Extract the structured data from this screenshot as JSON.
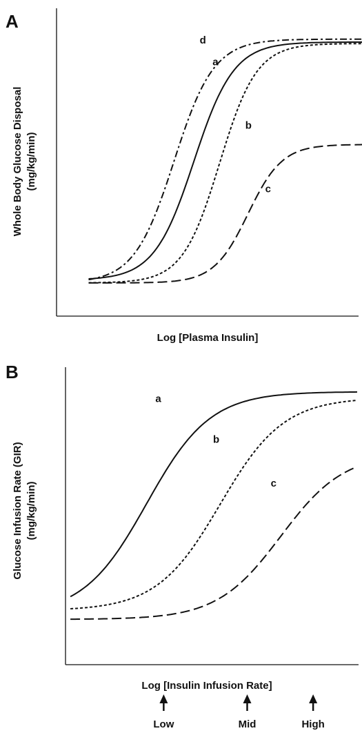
{
  "chart_data": [
    {
      "panel": "A",
      "type": "line",
      "xlabel": "Log [Plasma Insulin]",
      "ylabel": "Whole Body Glucose Disposal",
      "ylabel_unit": "(mg/kg/min)",
      "xlim": [
        0,
        10
      ],
      "ylim": [
        0,
        10
      ],
      "series": [
        {
          "name": "a",
          "style": "solid",
          "base": 1.25,
          "top": 9.5,
          "mid": 4.1,
          "slope": 0.7,
          "label_at": [
            4.75,
            8.7
          ]
        },
        {
          "name": "b",
          "style": "short-dash",
          "base": 1.15,
          "top": 9.45,
          "mid": 5.0,
          "slope": 0.65,
          "label_at": [
            5.9,
            6.5
          ]
        },
        {
          "name": "c",
          "style": "long-dash",
          "base": 1.15,
          "top": 5.95,
          "mid": 6.0,
          "slope": 0.6,
          "label_at": [
            6.6,
            4.3
          ]
        },
        {
          "name": "d",
          "style": "dash-dot",
          "base": 1.15,
          "top": 9.6,
          "mid": 3.4,
          "slope": 0.7,
          "label_at": [
            4.3,
            9.45
          ]
        }
      ]
    },
    {
      "panel": "B",
      "type": "line",
      "xlabel": "Log [Insulin Infusion Rate]",
      "ylabel": "Glucose Infusion Rate (GIR)",
      "ylabel_unit": "(mg/kg/min)",
      "xlim": [
        0,
        10
      ],
      "ylim": [
        0,
        10
      ],
      "series": [
        {
          "name": "a",
          "style": "solid",
          "base": 1.7,
          "top": 9.35,
          "mid": 2.7,
          "slope": 1.1,
          "label_at": [
            3.0,
            9.0
          ]
        },
        {
          "name": "b",
          "style": "short-dash",
          "base": 1.85,
          "top": 9.15,
          "mid": 5.25,
          "slope": 1.1,
          "label_at": [
            5.0,
            7.6
          ]
        },
        {
          "name": "c",
          "style": "long-dash",
          "base": 1.55,
          "top": 7.25,
          "mid": 7.35,
          "slope": 1.1,
          "label_at": [
            7.0,
            6.1
          ]
        }
      ],
      "arrows": [
        {
          "label": "Low",
          "x": 3.35
        },
        {
          "label": "Mid",
          "x": 6.2
        },
        {
          "label": "High",
          "x": 8.45
        }
      ]
    }
  ]
}
